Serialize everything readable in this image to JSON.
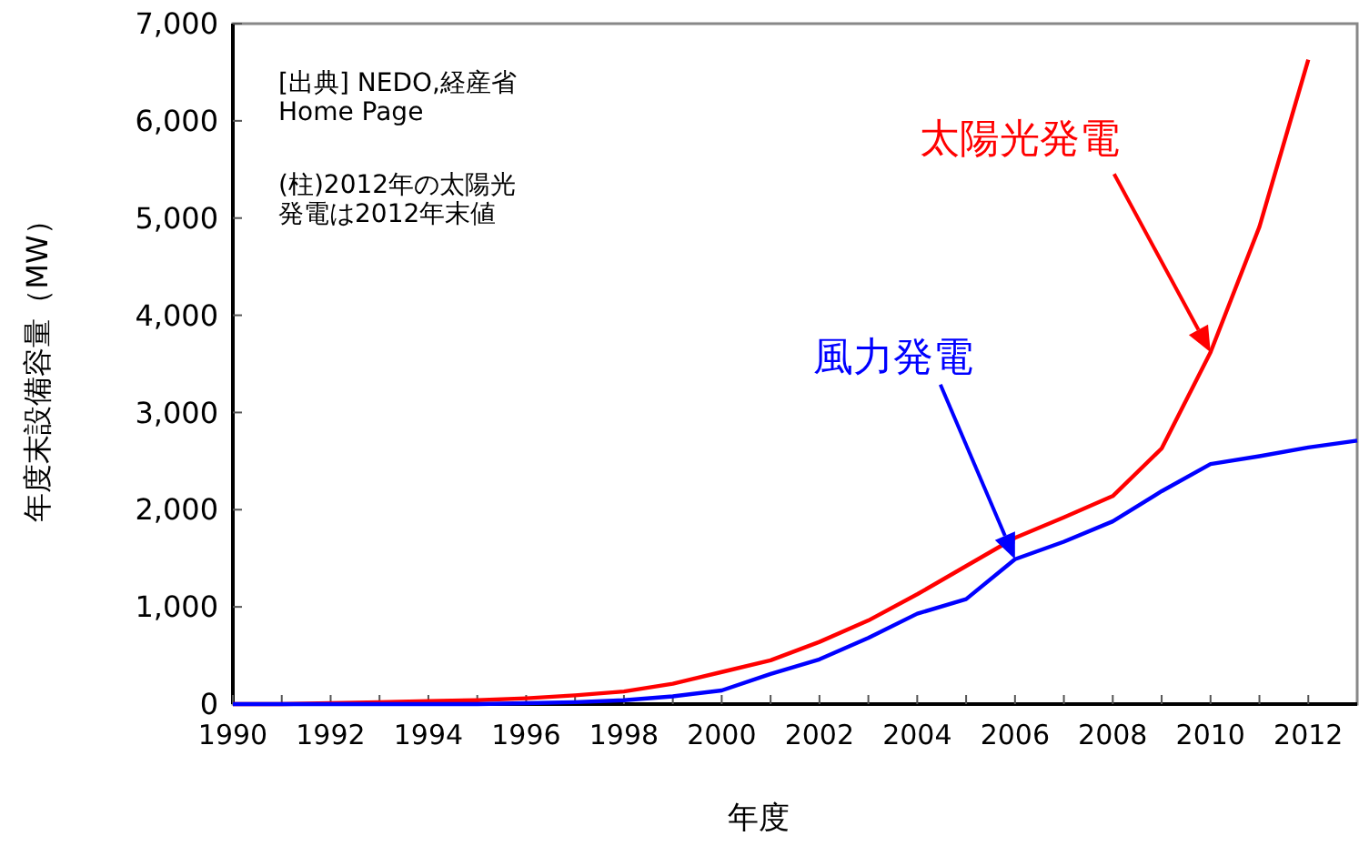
{
  "chart_data": {
    "type": "line",
    "xlabel": "年度",
    "ylabel": "年度末設備容量（MW）",
    "x": [
      1990,
      1991,
      1992,
      1993,
      1994,
      1995,
      1996,
      1997,
      1998,
      1999,
      2000,
      2001,
      2002,
      2003,
      2004,
      2005,
      2006,
      2007,
      2008,
      2009,
      2010,
      2011,
      2012,
      2013
    ],
    "series": [
      {
        "name": "太陽光発電",
        "color": "#ff0000",
        "values": [
          0,
          0,
          10,
          20,
          30,
          40,
          60,
          90,
          130,
          210,
          330,
          450,
          640,
          860,
          1130,
          1420,
          1710,
          1920,
          2140,
          2630,
          3620,
          4910,
          6630,
          null
        ]
      },
      {
        "name": "風力発電",
        "color": "#0000ff",
        "values": [
          0,
          0,
          0,
          0,
          0,
          0,
          10,
          20,
          40,
          80,
          140,
          310,
          460,
          680,
          930,
          1080,
          1490,
          1670,
          1880,
          2190,
          2470,
          2550,
          2640,
          2710
        ]
      }
    ],
    "xlim": [
      1990,
      2013
    ],
    "xticks": [
      1990,
      {
        "value": 1991,
        "label": null
      },
      1992,
      {
        "value": 1993,
        "label": null
      },
      1994,
      {
        "value": 1995,
        "label": null
      },
      1996,
      {
        "value": 1997,
        "label": null
      },
      1998,
      {
        "value": 1999,
        "label": null
      },
      2000,
      {
        "value": 2001,
        "label": null
      },
      2002,
      {
        "value": 2003,
        "label": null
      },
      2004,
      {
        "value": 2005,
        "label": null
      },
      2006,
      {
        "value": 2007,
        "label": null
      },
      2008,
      {
        "value": 2009,
        "label": null
      },
      2010,
      {
        "value": 2011,
        "label": null
      },
      2012
    ],
    "ylim": [
      0,
      7000
    ],
    "yticks": [
      0,
      {
        "value": 1000,
        "label": "1,000"
      },
      {
        "value": 2000,
        "label": "2,000"
      },
      {
        "value": 3000,
        "label": "3,000"
      },
      {
        "value": 4000,
        "label": "4,000"
      },
      {
        "value": 5000,
        "label": "5,000"
      },
      {
        "value": 6000,
        "label": "6,000"
      },
      {
        "value": 7000,
        "label": "7,000"
      }
    ],
    "grid": false,
    "legend": false,
    "marker": "none",
    "line_style": "solid",
    "annotations": [
      "[出典] NEDO,経産省\nHome Page",
      "(柱)2012年の太陽光発電は2012年末値"
    ]
  }
}
